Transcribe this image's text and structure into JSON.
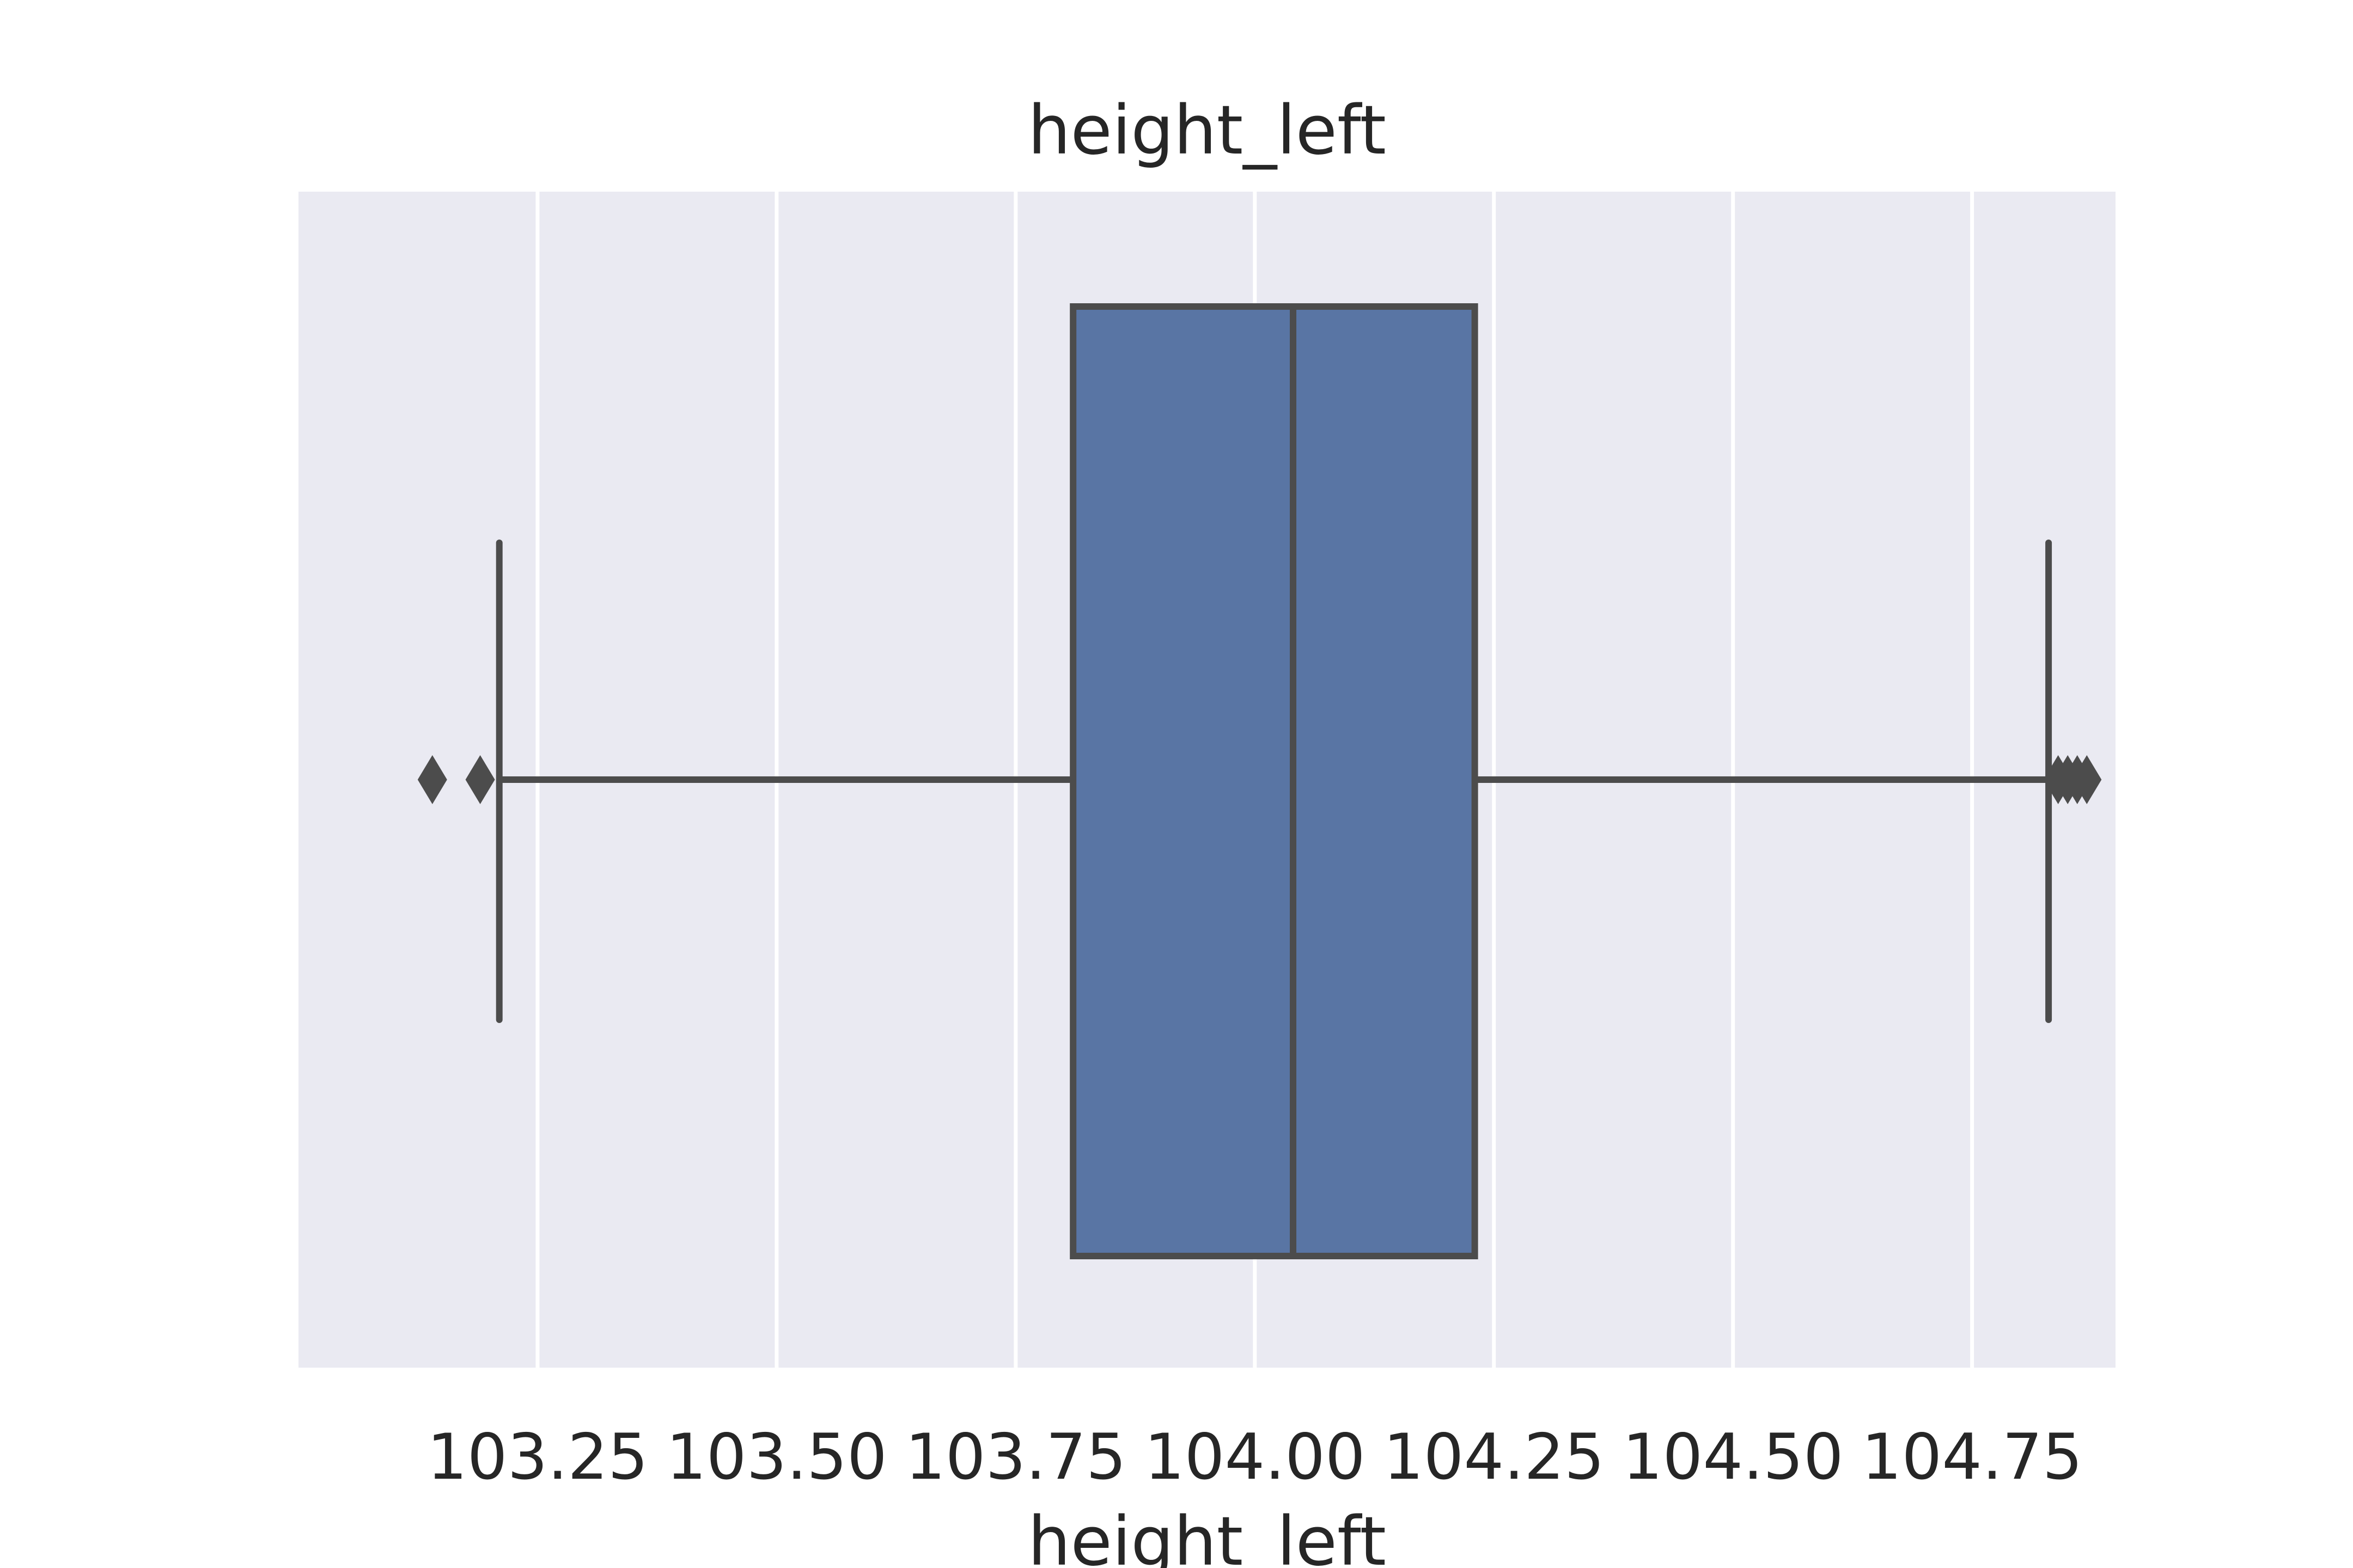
{
  "chart_data": {
    "type": "box",
    "title": "height_left",
    "xlabel": "height_left",
    "ylabel": "",
    "xlim": [
      103.0,
      104.9
    ],
    "xticks": [
      103.25,
      103.5,
      103.75,
      104.0,
      104.25,
      104.5,
      104.75
    ],
    "xtick_labels": [
      "103.25",
      "103.50",
      "103.75",
      "104.00",
      "104.25",
      "104.50",
      "104.75"
    ],
    "grid": true,
    "box": {
      "whisker_low": 103.21,
      "q1": 103.81,
      "median": 104.04,
      "q3": 104.23,
      "whisker_high": 104.83
    },
    "outliers": [
      103.14,
      103.19,
      104.84,
      104.85,
      104.86,
      104.87
    ],
    "colors": {
      "background": "#eaeaf2",
      "grid": "#ffffff",
      "box_fill": "#5975a4",
      "line": "#4c4c4c"
    }
  }
}
